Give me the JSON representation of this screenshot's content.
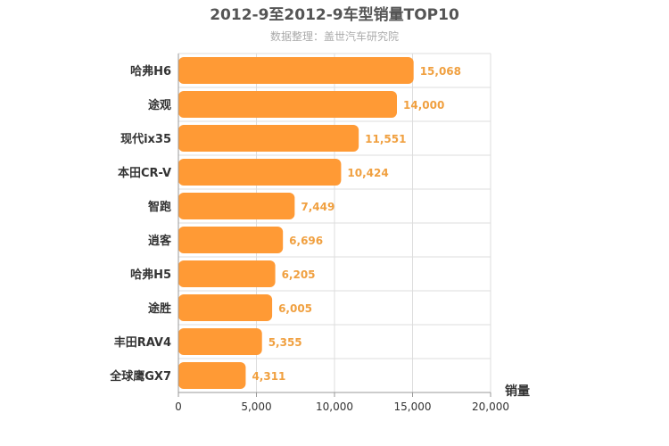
{
  "chart_data": {
    "type": "bar",
    "orientation": "horizontal",
    "title": "2012-9至2012-9车型销量TOP10",
    "subtitle": "数据整理：盖世汽车研究院",
    "categories": [
      "哈弗H6",
      "途观",
      "现代ix35",
      "本田CR-V",
      "智跑",
      "逍客",
      "哈弗H5",
      "途胜",
      "丰田RAV4",
      "全球鹰GX7"
    ],
    "values": [
      15068,
      14000,
      11551,
      10424,
      7449,
      6696,
      6205,
      6005,
      5355,
      4311
    ],
    "value_labels": [
      "15,068",
      "14,000",
      "11,551",
      "10,424",
      "7,449",
      "6,696",
      "6,205",
      "6,005",
      "5,355",
      "4,311"
    ],
    "xlabel": "销量",
    "ylabel": "",
    "xlim": [
      0,
      20000
    ],
    "xticks": [
      0,
      5000,
      10000,
      15000,
      20000
    ],
    "xtick_labels": [
      "0",
      "5,000",
      "10,000",
      "15,000",
      "20,000"
    ],
    "grid": true,
    "colors": {
      "bar": "#ff9a35",
      "data_label": "#f0a040"
    }
  }
}
